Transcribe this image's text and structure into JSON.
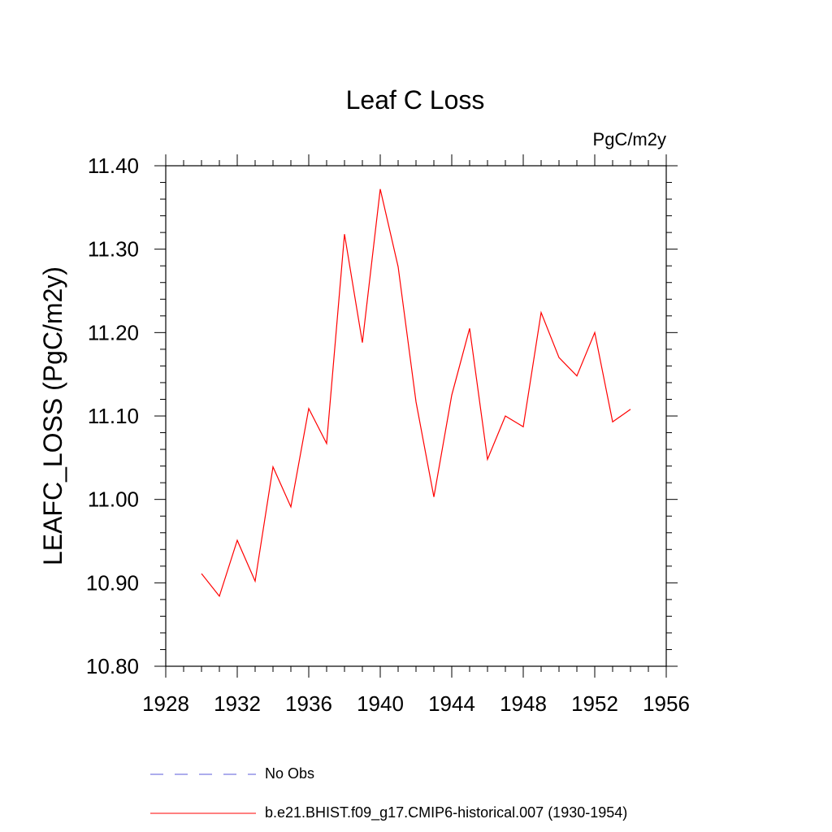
{
  "chart_data": {
    "type": "line",
    "title": "Leaf C Loss",
    "units": "PgC/m2y",
    "ylabel": "LEAFC_LOSS  (PgC/m2y)",
    "xlabel": "",
    "xlim": [
      1928,
      1956
    ],
    "ylim": [
      10.8,
      11.4
    ],
    "xticks": [
      "1928",
      "1932",
      "1936",
      "1940",
      "1944",
      "1948",
      "1952",
      "1956"
    ],
    "yticks": [
      "10.80",
      "10.90",
      "11.00",
      "11.10",
      "11.20",
      "11.30",
      "11.40"
    ],
    "grid": false,
    "legend_position": "bottom",
    "series": [
      {
        "name": "b.e21.BHIST.f09_g17.CMIP6-historical.007 (1930-1954)",
        "color": "#ff0000",
        "style": "solid",
        "x": [
          1930,
          1931,
          1932,
          1933,
          1934,
          1935,
          1936,
          1937,
          1938,
          1939,
          1940,
          1941,
          1942,
          1943,
          1944,
          1945,
          1946,
          1947,
          1948,
          1949,
          1950,
          1951,
          1952,
          1953,
          1954
        ],
        "y": [
          10.911,
          10.884,
          10.951,
          10.902,
          11.039,
          10.991,
          11.109,
          11.067,
          11.318,
          11.188,
          11.372,
          11.279,
          11.117,
          11.003,
          11.125,
          11.205,
          11.048,
          11.1,
          11.087,
          11.224,
          11.17,
          11.148,
          11.2,
          11.093,
          11.108
        ]
      }
    ]
  },
  "legend": [
    {
      "label": "No Obs",
      "color": "#5a5ad8",
      "style": "dashed"
    },
    {
      "label": "b.e21.BHIST.f09_g17.CMIP6-historical.007 (1930-1954)",
      "color": "#ff0000",
      "style": "solid"
    }
  ]
}
